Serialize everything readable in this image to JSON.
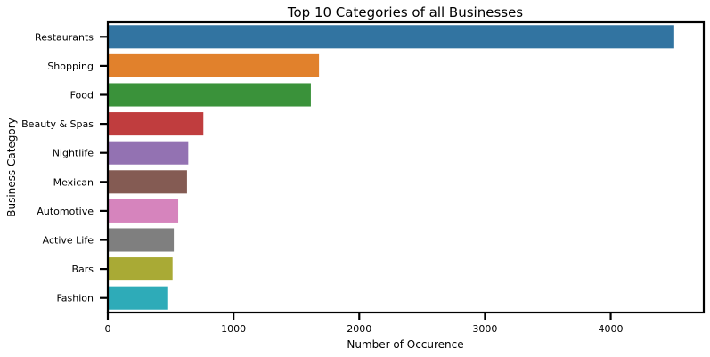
{
  "chart_data": {
    "type": "bar",
    "orientation": "horizontal",
    "title": "Top 10 Categories of all Businesses",
    "xlabel": "Number of Occurence",
    "ylabel": "Business Category",
    "xlim": [
      0,
      4740
    ],
    "xticks": [
      0,
      1000,
      2000,
      3000,
      4000
    ],
    "categories": [
      "Restaurants",
      "Shopping",
      "Food",
      "Beauty & Spas",
      "Nightlife",
      "Mexican",
      "Automotive",
      "Active Life",
      "Bars",
      "Fashion"
    ],
    "values": [
      4505,
      1680,
      1615,
      760,
      640,
      630,
      560,
      525,
      515,
      480
    ],
    "colors": [
      "#3274a1",
      "#e1812c",
      "#3a923a",
      "#c03d3e",
      "#9372b2",
      "#845b53",
      "#d684bd",
      "#7f7f7f",
      "#a9aa35",
      "#2eabb8"
    ],
    "grid": false
  }
}
